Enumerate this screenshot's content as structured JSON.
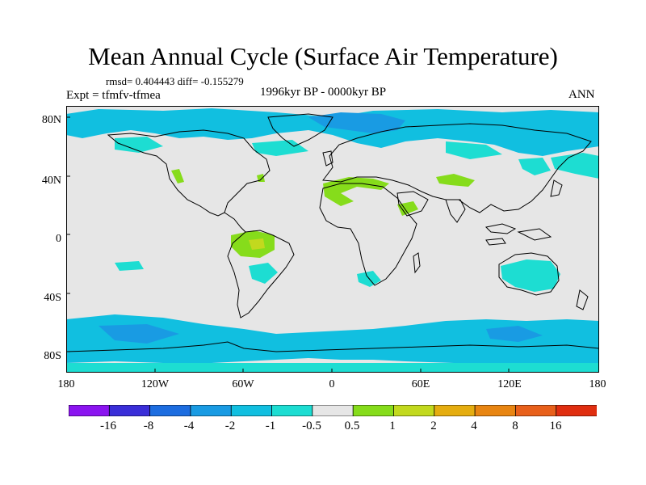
{
  "title": "Mean Annual Cycle (Surface Air Temperature)",
  "stats": "rmsd= 0.404443 diff= -0.155279",
  "expt": "Expt = tfmfv-tfmea",
  "period": "1996kyr BP - 0000kyr BP",
  "season": "ANN",
  "lat_labels": [
    "80N",
    "40N",
    "0",
    "40S",
    "80S"
  ],
  "lon_labels": [
    "180",
    "120W",
    "60W",
    "0",
    "60E",
    "120E",
    "180"
  ],
  "colorbar": {
    "labels": [
      "-16",
      "-8",
      "-4",
      "-2",
      "-1",
      "-0.5",
      "0.5",
      "1",
      "2",
      "4",
      "8",
      "16"
    ],
    "colors": [
      "#8b14f0",
      "#3a2ed8",
      "#1d6de0",
      "#199be3",
      "#11bfe0",
      "#1dddd2",
      "#e6e6e6",
      "#86dc1b",
      "#c2d91e",
      "#e5ad10",
      "#e88512",
      "#e8601b",
      "#e02e10"
    ]
  },
  "anomaly_colors": {
    "land_sea_neutral": "#e6e6e6",
    "weak_cool": "#1dddd2",
    "cool": "#11bfe0",
    "moderate_cool": "#199be3",
    "strong_cool": "#1d6de0",
    "weak_warm": "#86dc1b",
    "warm": "#c2d91e"
  }
}
